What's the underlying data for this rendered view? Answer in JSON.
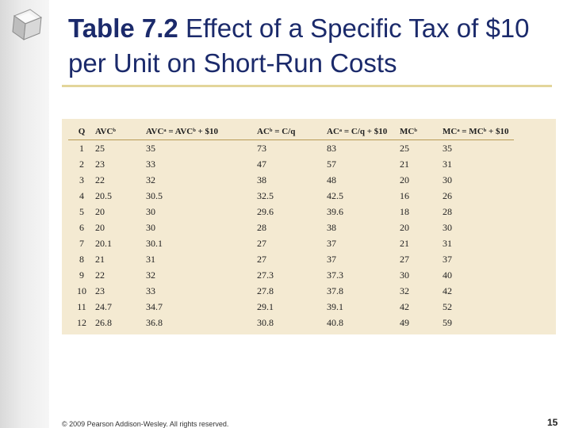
{
  "title": {
    "prefix": "Table 7.2",
    "text": " Effect of a Specific Tax of $10 per Unit on Short-Run Costs"
  },
  "table": {
    "headers": [
      "Q",
      "AVCᵇ",
      "AVCᵃ = AVCᵇ + $10",
      "ACᵇ = C/q",
      "ACᵃ = C/q + $10",
      "MCᵇ",
      "MCᵃ = MCᵇ + $10"
    ],
    "rows": [
      [
        "1",
        "25",
        "35",
        "73",
        "83",
        "25",
        "35"
      ],
      [
        "2",
        "23",
        "33",
        "47",
        "57",
        "21",
        "31"
      ],
      [
        "3",
        "22",
        "32",
        "38",
        "48",
        "20",
        "30"
      ],
      [
        "4",
        "20.5",
        "30.5",
        "32.5",
        "42.5",
        "16",
        "26"
      ],
      [
        "5",
        "20",
        "30",
        "29.6",
        "39.6",
        "18",
        "28"
      ],
      [
        "6",
        "20",
        "30",
        "28",
        "38",
        "20",
        "30"
      ],
      [
        "7",
        "20.1",
        "30.1",
        "27",
        "37",
        "21",
        "31"
      ],
      [
        "8",
        "21",
        "31",
        "27",
        "37",
        "27",
        "37"
      ],
      [
        "9",
        "22",
        "32",
        "27.3",
        "37.3",
        "30",
        "40"
      ],
      [
        "10",
        "23",
        "33",
        "27.8",
        "37.8",
        "32",
        "42"
      ],
      [
        "11",
        "24.7",
        "34.7",
        "29.1",
        "39.1",
        "42",
        "52"
      ],
      [
        "12",
        "26.8",
        "36.8",
        "30.8",
        "40.8",
        "49",
        "59"
      ]
    ]
  },
  "footer": {
    "copyright": "© 2009 Pearson Addison-Wesley. All rights reserved."
  },
  "page_number": "15",
  "colors": {
    "title": "#1b2a6b",
    "table_bg": "#f4ead2",
    "rule": "#e3d59a"
  },
  "icons": {
    "corner": "glass-cube-icon"
  }
}
